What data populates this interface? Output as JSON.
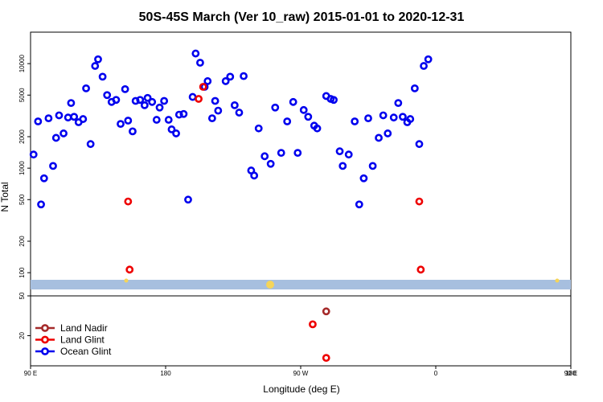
{
  "chart_data": {
    "type": "scatter",
    "title": "50S-45S March (Ver 10_raw)   2015-01-01 to 2020-12-31",
    "xlabel": "Longitude (deg E)",
    "ylabel": "N Total",
    "x_range": [
      90,
      450
    ],
    "x_ticks": [
      {
        "value": 90,
        "label": "90 E"
      },
      {
        "value": 180,
        "label": "180"
      },
      {
        "value": 270,
        "label": "90 W"
      },
      {
        "value": 360,
        "label": "0"
      },
      {
        "value": 450,
        "label": "90 E"
      },
      {
        "value": 540,
        "label": "180"
      }
    ],
    "main_panel": {
      "y_scale": "log",
      "y_range": [
        60,
        20000
      ],
      "y_ticks": [
        {
          "value": 100,
          "label": "100"
        },
        {
          "value": 200,
          "label": "200"
        },
        {
          "value": 500,
          "label": "500"
        },
        {
          "value": 1000,
          "label": "1000"
        },
        {
          "value": 2000,
          "label": "2000"
        },
        {
          "value": 5000,
          "label": "5000"
        },
        {
          "value": 10000,
          "label": "10000"
        }
      ]
    },
    "sub_panel": {
      "y_scale": "log",
      "y_range": [
        10,
        50
      ],
      "y_ticks": [
        {
          "value": 20,
          "label": "20"
        },
        {
          "value": 50,
          "label": "50"
        }
      ]
    },
    "series": [
      {
        "name": "Ocean Glint",
        "color": "#0000ee",
        "panel": "main",
        "points": [
          [
            92,
            1350
          ],
          [
            95,
            2800
          ],
          [
            97,
            450
          ],
          [
            99,
            800
          ],
          [
            102,
            3000
          ],
          [
            105,
            1050
          ],
          [
            107,
            1950
          ],
          [
            109,
            3200
          ],
          [
            112,
            2150
          ],
          [
            115,
            3050
          ],
          [
            117,
            4200
          ],
          [
            119,
            3100
          ],
          [
            122,
            2750
          ],
          [
            125,
            2950
          ],
          [
            127,
            5800
          ],
          [
            130,
            1700
          ],
          [
            133,
            9500
          ],
          [
            135,
            11000
          ],
          [
            138,
            7500
          ],
          [
            141,
            5000
          ],
          [
            144,
            4300
          ],
          [
            147,
            4500
          ],
          [
            150,
            2650
          ],
          [
            153,
            5700
          ],
          [
            155,
            2850
          ],
          [
            158,
            2250
          ],
          [
            160,
            4400
          ],
          [
            163,
            4500
          ],
          [
            166,
            4000
          ],
          [
            168,
            4700
          ],
          [
            171,
            4300
          ],
          [
            174,
            2900
          ],
          [
            176,
            3800
          ],
          [
            179,
            4400
          ],
          [
            182,
            2900
          ],
          [
            184,
            2350
          ],
          [
            187,
            2150
          ],
          [
            189,
            3250
          ],
          [
            192,
            3300
          ],
          [
            195,
            500
          ],
          [
            198,
            4800
          ],
          [
            200,
            12500
          ],
          [
            203,
            10200
          ],
          [
            206,
            6000
          ],
          [
            208,
            6800
          ],
          [
            211,
            3000
          ],
          [
            213,
            4400
          ],
          [
            215,
            3550
          ],
          [
            220,
            6800
          ],
          [
            223,
            7500
          ],
          [
            226,
            4000
          ],
          [
            229,
            3400
          ],
          [
            232,
            7600
          ],
          [
            237,
            950
          ],
          [
            239,
            850
          ],
          [
            242,
            2400
          ],
          [
            246,
            1300
          ],
          [
            250,
            1100
          ],
          [
            253,
            3800
          ],
          [
            257,
            1400
          ],
          [
            261,
            2800
          ],
          [
            265,
            4300
          ],
          [
            268,
            1400
          ],
          [
            272,
            3600
          ],
          [
            275,
            3100
          ],
          [
            279,
            2550
          ],
          [
            281,
            2400
          ],
          [
            287,
            4900
          ],
          [
            290,
            4600
          ],
          [
            292,
            4500
          ],
          [
            296,
            1450
          ],
          [
            298,
            1050
          ],
          [
            302,
            1350
          ],
          [
            306,
            2800
          ],
          [
            309,
            450
          ],
          [
            312,
            800
          ],
          [
            315,
            3000
          ],
          [
            318,
            1050
          ],
          [
            322,
            1950
          ],
          [
            325,
            3200
          ],
          [
            328,
            2150
          ],
          [
            332,
            3050
          ],
          [
            335,
            4200
          ],
          [
            338,
            3100
          ],
          [
            341,
            2750
          ],
          [
            343,
            2950
          ],
          [
            346,
            5800
          ],
          [
            349,
            1700
          ],
          [
            352,
            9500
          ],
          [
            355,
            11000
          ]
        ]
      },
      {
        "name": "Land Glint",
        "color": "#ee0000",
        "panel": "main",
        "points": [
          [
            155,
            480
          ],
          [
            156,
            107
          ],
          [
            202,
            4600
          ],
          [
            205,
            6000
          ],
          [
            349,
            480
          ],
          [
            350,
            107
          ]
        ]
      },
      {
        "name": "Land Glint",
        "color": "#ee0000",
        "panel": "sub",
        "points": [
          [
            278,
            26
          ],
          [
            287,
            12
          ]
        ]
      },
      {
        "name": "Land Nadir",
        "color": "#a52a2a",
        "panel": "sub",
        "points": [
          [
            287,
            35
          ]
        ]
      }
    ],
    "legend": {
      "position": "bottom-left",
      "entries": [
        {
          "name": "Land Nadir",
          "color": "#a52a2a"
        },
        {
          "name": "Land Glint",
          "color": "#ee0000"
        },
        {
          "name": "Ocean Glint",
          "color": "#0000ee"
        }
      ]
    },
    "colors": {
      "land_band": "#a7bfdf",
      "land_marker": "#f5d55a"
    }
  }
}
